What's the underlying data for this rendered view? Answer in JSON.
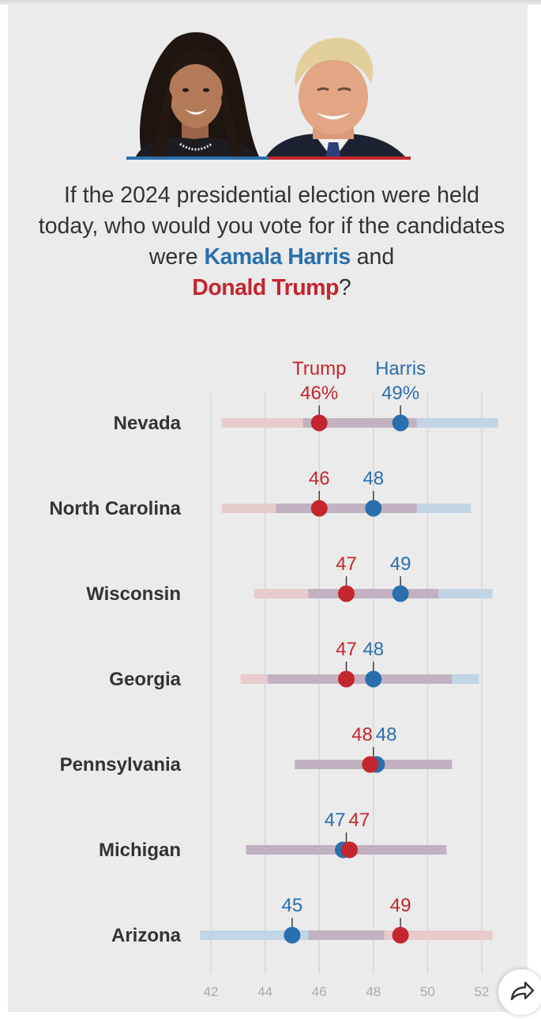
{
  "question": {
    "before": "If the 2024 presidential election were held today, who would you vote for if the candidates were ",
    "harris_name": "Kamala Harris",
    "middle": " and ",
    "trump_name": "Donald Trump",
    "after": "?"
  },
  "colors": {
    "harris": "#2a6fad",
    "trump": "#c3262d",
    "harris_range": "#c3d5e4",
    "trump_range": "#e8cbcd",
    "overlap_range": "#c1b1c1",
    "gridline": "#d2d2d2",
    "state_label": "#333333",
    "axis_label": "#aaaaaa",
    "background": "#ebebeb"
  },
  "icons": {
    "share": "share-arrow-icon"
  },
  "chart_data": {
    "type": "dot-range",
    "title": "If the 2024 presidential election were held today, who would you vote for if the candidates were Kamala Harris and Donald Trump?",
    "candidates": [
      {
        "name": "Trump",
        "color": "#c3262d"
      },
      {
        "name": "Harris",
        "color": "#2a6fad"
      }
    ],
    "x_ticks": [
      42,
      44,
      46,
      48,
      50,
      52
    ],
    "xlim": [
      41.5,
      52.5
    ],
    "unit_first_row": "%",
    "grid": true,
    "rows": [
      {
        "state": "Nevada",
        "trump": 46,
        "harris": 49,
        "trump_label": "46%",
        "harris_label": "49%",
        "trump_range": [
          42.4,
          49.6
        ],
        "harris_range": [
          45.4,
          52.6
        ]
      },
      {
        "state": "North Carolina",
        "trump": 46,
        "harris": 48,
        "trump_label": "46",
        "harris_label": "48",
        "trump_range": [
          42.4,
          49.6
        ],
        "harris_range": [
          44.4,
          51.6
        ]
      },
      {
        "state": "Wisconsin",
        "trump": 47,
        "harris": 49,
        "trump_label": "47",
        "harris_label": "49",
        "trump_range": [
          43.6,
          50.4
        ],
        "harris_range": [
          45.6,
          52.4
        ]
      },
      {
        "state": "Georgia",
        "trump": 47,
        "harris": 48,
        "trump_label": "47",
        "harris_label": "48",
        "trump_range": [
          43.1,
          50.9
        ],
        "harris_range": [
          44.1,
          51.9
        ]
      },
      {
        "state": "Pennsylvania",
        "trump": 48,
        "harris": 48,
        "trump_label": "48",
        "harris_label": "48",
        "trump_range": [
          45.1,
          50.9
        ],
        "harris_range": [
          45.1,
          50.9
        ]
      },
      {
        "state": "Michigan",
        "trump": 47,
        "harris": 47,
        "trump_label": "47",
        "harris_label": "47",
        "trump_range": [
          43.3,
          50.7
        ],
        "harris_range": [
          43.3,
          50.7
        ]
      },
      {
        "state": "Arizona",
        "trump": 49,
        "harris": 45,
        "trump_label": "49",
        "harris_label": "45",
        "trump_range": [
          45.6,
          52.4
        ],
        "harris_range": [
          41.6,
          48.4
        ]
      }
    ]
  }
}
